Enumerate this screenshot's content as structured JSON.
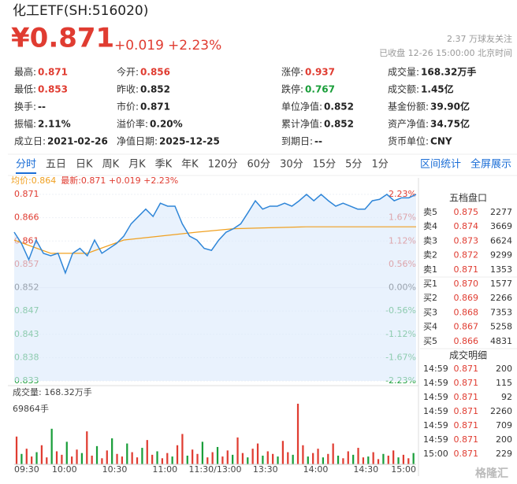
{
  "header": {
    "name": "化工ETF(SH:516020)",
    "price": "¥0.871",
    "change": "+0.019",
    "change_pct": "+2.23%",
    "followers": "2.37 万球友关注",
    "status": "已收盘 12-26 15:00:00 北京时间"
  },
  "stats": [
    [
      {
        "label": "最高:",
        "value": "0.871",
        "tone": "up"
      },
      {
        "label": "今开:",
        "value": "0.856",
        "tone": "up"
      },
      {
        "label": "涨停:",
        "value": "0.937",
        "tone": "up"
      },
      {
        "label": "成交量:",
        "value": "168.32万手"
      }
    ],
    [
      {
        "label": "最低:",
        "value": "0.853",
        "tone": "up"
      },
      {
        "label": "昨收:",
        "value": "0.852"
      },
      {
        "label": "跌停:",
        "value": "0.767",
        "tone": "down"
      },
      {
        "label": "成交额:",
        "value": "1.45亿"
      }
    ],
    [
      {
        "label": "换手:",
        "value": "--"
      },
      {
        "label": "市价:",
        "value": "0.871"
      },
      {
        "label": "单位净值:",
        "value": "0.852"
      },
      {
        "label": "基金份额:",
        "value": "39.90亿"
      }
    ],
    [
      {
        "label": "振幅:",
        "value": "2.11%"
      },
      {
        "label": "溢价率:",
        "value": "0.20%"
      },
      {
        "label": "累计净值:",
        "value": "0.852"
      },
      {
        "label": "资产净值:",
        "value": "34.75亿"
      }
    ],
    [
      {
        "label": "成立日:",
        "value": "2021-02-26"
      },
      {
        "label": "净值日期:",
        "value": "2025-12-25"
      },
      {
        "label": "到期日:",
        "value": "--"
      },
      {
        "label": "货币单位:",
        "value": "CNY"
      }
    ]
  ],
  "tabs": [
    "分时",
    "五日",
    "日K",
    "周K",
    "月K",
    "季K",
    "年K",
    "120分",
    "60分",
    "30分",
    "15分",
    "5分",
    "1分"
  ],
  "active_tab": 0,
  "tools": [
    "区间统计",
    "全屏展示"
  ],
  "legend": {
    "avg": "均价:0.864",
    "latest": "最新:0.871 +0.019 +2.23%"
  },
  "intraday": {
    "ylim": [
      0.833,
      0.871
    ],
    "price_ticks": [
      "0.871",
      "0.866",
      "0.861",
      "0.857",
      "0.852",
      "0.847",
      "0.843",
      "0.838",
      "0.833"
    ],
    "pct_ticks": [
      "2.23%",
      "1.67%",
      "1.12%",
      "0.56%",
      "0.00%",
      "-0.56%",
      "-1.12%",
      "-1.67%",
      "-2.23%"
    ],
    "price": [
      0.8633,
      0.861,
      0.8577,
      0.8617,
      0.859,
      0.8585,
      0.859,
      0.855,
      0.859,
      0.86,
      0.8585,
      0.8617,
      0.859,
      0.86,
      0.861,
      0.8625,
      0.865,
      0.8665,
      0.868,
      0.8665,
      0.8692,
      0.8686,
      0.8686,
      0.865,
      0.8625,
      0.8617,
      0.86,
      0.8596,
      0.8617,
      0.8633,
      0.864,
      0.865,
      0.8673,
      0.8697,
      0.868,
      0.8686,
      0.8686,
      0.8692,
      0.8686,
      0.8697,
      0.871,
      0.8697,
      0.871,
      0.8697,
      0.8686,
      0.8692,
      0.8686,
      0.868,
      0.868,
      0.8697,
      0.87,
      0.871,
      0.8697,
      0.8703,
      0.8703,
      0.871
    ],
    "avg": [
      0.8617,
      0.859,
      0.859,
      0.8617,
      0.8625,
      0.8633,
      0.864,
      0.8642,
      0.8644,
      0.8644,
      0.8644,
      0.8644
    ],
    "time_labels": [
      "09:30",
      "10:00",
      "10:30",
      "11:00",
      "11:30/13:00",
      "13:30",
      "14:00",
      "14:30",
      "15:00"
    ],
    "volume_title": "成交量: 168.32万手",
    "volume_max_label": "69864手",
    "volume_max": 69864,
    "volume": [
      32000,
      12000,
      18000,
      9000,
      14000,
      22000,
      8000,
      41000,
      15000,
      11000,
      26000,
      9000,
      17000,
      13000,
      38000,
      10000,
      21000,
      7000,
      16000,
      30000,
      12000,
      9000,
      24000,
      14000,
      8000,
      19000,
      28000,
      11000,
      15000,
      7000,
      13000,
      9000,
      22000,
      35000,
      10000,
      17000,
      12000,
      26000,
      8000,
      14000,
      20000,
      9000,
      16000,
      11000,
      31000,
      13000,
      8000,
      18000,
      24000,
      10000,
      15000,
      12000,
      9000,
      27000,
      14000,
      11000,
      69864,
      22000,
      9000,
      13000,
      18000,
      8000,
      12000,
      24000,
      10000,
      7000,
      15000,
      11000,
      19000,
      8000,
      9000,
      14000,
      6000,
      12000,
      10000,
      16000,
      8000,
      11000,
      7000,
      13000
    ]
  },
  "order_book": {
    "title": "五档盘口",
    "asks": [
      {
        "label": "卖5",
        "price": "0.875",
        "volume": "2277"
      },
      {
        "label": "卖4",
        "price": "0.874",
        "volume": "3669"
      },
      {
        "label": "卖3",
        "price": "0.873",
        "volume": "6624"
      },
      {
        "label": "卖2",
        "price": "0.872",
        "volume": "9299"
      },
      {
        "label": "卖1",
        "price": "0.871",
        "volume": "1353"
      }
    ],
    "bids": [
      {
        "label": "买1",
        "price": "0.870",
        "volume": "1577"
      },
      {
        "label": "买2",
        "price": "0.869",
        "volume": "2266"
      },
      {
        "label": "买3",
        "price": "0.868",
        "volume": "7353"
      },
      {
        "label": "买4",
        "price": "0.867",
        "volume": "5258"
      },
      {
        "label": "买5",
        "price": "0.866",
        "volume": "4831"
      }
    ]
  },
  "trades": {
    "title": "成交明细",
    "rows": [
      [
        "14:59",
        "0.871",
        "200"
      ],
      [
        "14:59",
        "0.871",
        "115"
      ],
      [
        "14:59",
        "0.871",
        "92"
      ],
      [
        "14:59",
        "0.871",
        "2260"
      ],
      [
        "14:59",
        "0.871",
        "709"
      ],
      [
        "14:59",
        "0.871",
        "200"
      ],
      [
        "15:00",
        "0.871",
        "229"
      ]
    ]
  },
  "watermark": "格隆汇"
}
